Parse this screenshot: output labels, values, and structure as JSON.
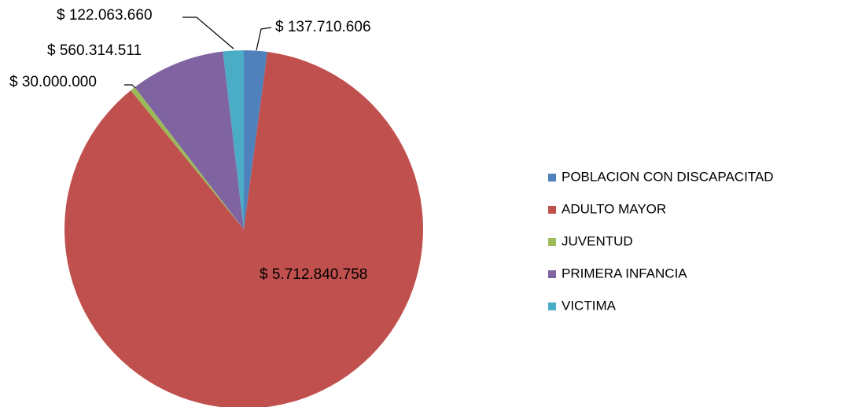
{
  "chart_data": {
    "type": "pie",
    "categories": [
      "POBLACION CON DISCAPACITAD",
      "ADULTO MAYOR",
      "JUVENTUD",
      "PRIMERA INFANCIA",
      "VICTIMA"
    ],
    "values": [
      137710606,
      5712840758,
      30000000,
      560314511,
      122063660
    ],
    "value_labels": [
      "$ 137.710.606",
      "$ 5.712.840.758",
      "$ 30.000.000",
      "$ 560.314.511",
      "$ 122.063.660"
    ],
    "colors": [
      "#4f81bd",
      "#c0504d",
      "#9bbb59",
      "#8064a2",
      "#4bacc6"
    ],
    "legend": "right"
  }
}
